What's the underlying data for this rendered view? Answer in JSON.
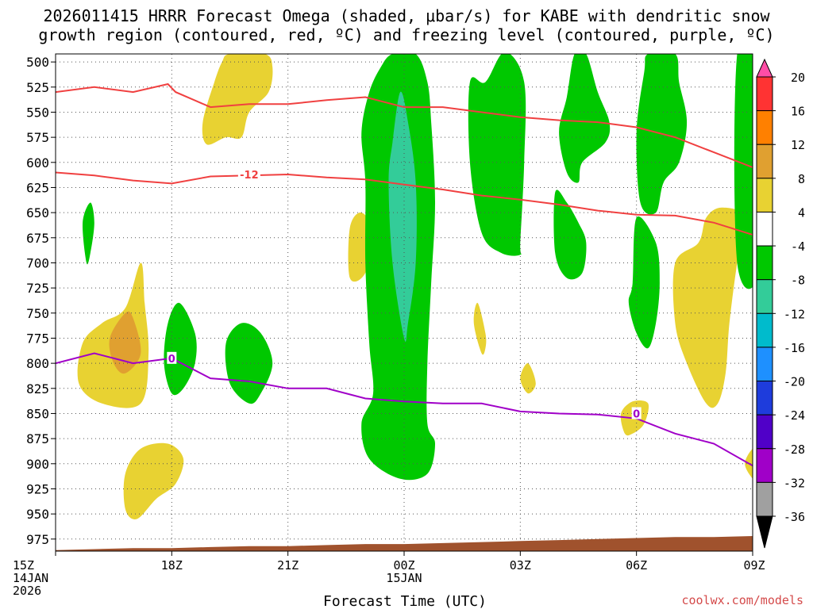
{
  "chart_data": {
    "type": "heatmap",
    "title": [
      "2026011415 HRRR Forecast Omega (shaded, μbar/s) for KABE with dendritic snow",
      "growth region (contoured, red, ºC) and freezing level (contoured, purple, ºC)"
    ],
    "xlabel": "Forecast Time (UTC)",
    "credit": "coolwx.com/models",
    "x_range_hours": [
      15,
      33
    ],
    "x_ticks": [
      {
        "hour": 15,
        "lines": [
          "15Z",
          "14JAN",
          "2026"
        ]
      },
      {
        "hour": 18,
        "lines": [
          "18Z"
        ]
      },
      {
        "hour": 21,
        "lines": [
          "21Z"
        ]
      },
      {
        "hour": 24,
        "lines": [
          "00Z",
          "15JAN"
        ]
      },
      {
        "hour": 27,
        "lines": [
          "03Z"
        ]
      },
      {
        "hour": 30,
        "lines": [
          "06Z"
        ]
      },
      {
        "hour": 33,
        "lines": [
          "09Z"
        ]
      }
    ],
    "y_range_hpa": [
      987,
      492
    ],
    "y_ticks": [
      500,
      525,
      550,
      575,
      600,
      625,
      650,
      675,
      700,
      725,
      750,
      775,
      800,
      825,
      850,
      875,
      900,
      925,
      950,
      975
    ],
    "colorbar": {
      "labels": [
        "20",
        "16",
        "12",
        "8",
        "4",
        "-4",
        "-8",
        "-12",
        "-16",
        "-20",
        "-24",
        "-28",
        "-32",
        "-36"
      ],
      "colors": [
        "#ff4da6",
        "#ff3333",
        "#ff8000",
        "#e0a030",
        "#e8d232",
        "#ffffff",
        "#00c800",
        "#33cc99",
        "#00bbcc",
        "#1e90ff",
        "#1e3cdc",
        "#5000c8",
        "#a000c8",
        "#a0a0a0",
        "#000000"
      ]
    },
    "omega_regions": [
      {
        "level": "4",
        "color": "#e8d232",
        "points": [
          [
            16.2,
            840
          ],
          [
            15.6,
            820
          ],
          [
            15.7,
            780
          ],
          [
            16.2,
            760
          ],
          [
            16.8,
            745
          ],
          [
            17.2,
            700
          ],
          [
            17.3,
            740
          ],
          [
            17.4,
            790
          ],
          [
            17.2,
            840
          ]
        ]
      },
      {
        "level": "8",
        "color": "#e0a030",
        "points": [
          [
            16.5,
            800
          ],
          [
            16.4,
            775
          ],
          [
            16.8,
            750
          ],
          [
            17.0,
            755
          ],
          [
            17.2,
            790
          ],
          [
            16.8,
            810
          ]
        ]
      },
      {
        "level": "4",
        "color": "#e8d232",
        "points": [
          [
            16.8,
            945
          ],
          [
            16.8,
            910
          ],
          [
            17.2,
            885
          ],
          [
            17.9,
            880
          ],
          [
            18.3,
            895
          ],
          [
            18.1,
            920
          ],
          [
            17.6,
            935
          ],
          [
            17.1,
            955
          ]
        ]
      },
      {
        "level": "4",
        "color": "#e8d232",
        "points": [
          [
            18.9,
            582
          ],
          [
            18.8,
            560
          ],
          [
            19.1,
            520
          ],
          [
            19.3,
            500
          ],
          [
            19.5,
            492
          ],
          [
            20.4,
            492
          ],
          [
            20.6,
            505
          ],
          [
            20.5,
            530
          ],
          [
            20.0,
            550
          ],
          [
            19.8,
            575
          ],
          [
            19.4,
            575
          ]
        ]
      },
      {
        "level": "4",
        "color": "#e8d232",
        "points": [
          [
            22.6,
            715
          ],
          [
            22.6,
            665
          ],
          [
            22.9,
            650
          ],
          [
            23.2,
            670
          ],
          [
            23.0,
            710
          ]
        ]
      },
      {
        "level": "4",
        "color": "#e8d232",
        "points": [
          [
            26.0,
            790
          ],
          [
            25.8,
            760
          ],
          [
            25.9,
            740
          ],
          [
            26.1,
            770
          ],
          [
            26.1,
            785
          ]
        ]
      },
      {
        "level": "4",
        "color": "#e8d232",
        "points": [
          [
            27.2,
            830
          ],
          [
            27.0,
            815
          ],
          [
            27.2,
            800
          ],
          [
            27.4,
            820
          ]
        ]
      },
      {
        "level": "4",
        "color": "#e8d232",
        "points": [
          [
            29.7,
            870
          ],
          [
            29.6,
            850
          ],
          [
            29.9,
            838
          ],
          [
            30.3,
            840
          ],
          [
            30.2,
            860
          ],
          [
            29.9,
            870
          ]
        ]
      },
      {
        "level": "4",
        "color": "#e8d232",
        "points": [
          [
            31.8,
            840
          ],
          [
            31.3,
            800
          ],
          [
            31.0,
            760
          ],
          [
            31.0,
            700
          ],
          [
            31.6,
            680
          ],
          [
            31.8,
            655
          ],
          [
            32.2,
            645
          ],
          [
            32.8,
            655
          ],
          [
            32.6,
            700
          ],
          [
            32.4,
            760
          ],
          [
            32.3,
            810
          ],
          [
            32.1,
            840
          ]
        ]
      },
      {
        "level": "4",
        "color": "#e8d232",
        "points": [
          [
            33.0,
            915
          ],
          [
            32.8,
            900
          ],
          [
            33.0,
            885
          ],
          [
            33.2,
            885
          ],
          [
            33.2,
            920
          ]
        ]
      },
      {
        "level": "-4",
        "color": "#00c800",
        "points": [
          [
            23.9,
            915
          ],
          [
            23.1,
            895
          ],
          [
            22.9,
            860
          ],
          [
            23.2,
            830
          ],
          [
            23.1,
            780
          ],
          [
            23.0,
            700
          ],
          [
            23.0,
            620
          ],
          [
            22.9,
            570
          ],
          [
            23.1,
            530
          ],
          [
            23.4,
            505
          ],
          [
            23.7,
            492
          ],
          [
            24.3,
            492
          ],
          [
            24.6,
            520
          ],
          [
            24.7,
            560
          ],
          [
            24.8,
            640
          ],
          [
            24.7,
            720
          ],
          [
            24.6,
            800
          ],
          [
            24.6,
            860
          ],
          [
            24.8,
            880
          ],
          [
            24.6,
            910
          ]
        ]
      },
      {
        "level": "-8",
        "color": "#33cc99",
        "points": [
          [
            24.0,
            775
          ],
          [
            23.7,
            700
          ],
          [
            23.6,
            620
          ],
          [
            23.7,
            580
          ],
          [
            23.9,
            530
          ],
          [
            24.1,
            560
          ],
          [
            24.3,
            620
          ],
          [
            24.3,
            700
          ],
          [
            24.1,
            760
          ]
        ]
      },
      {
        "level": "-4",
        "color": "#00c800",
        "points": [
          [
            27.0,
            692
          ],
          [
            26.5,
            690
          ],
          [
            26.0,
            670
          ],
          [
            25.7,
            600
          ],
          [
            25.7,
            520
          ],
          [
            26.1,
            520
          ],
          [
            26.6,
            490
          ],
          [
            27.1,
            520
          ],
          [
            27.1,
            600
          ],
          [
            27.0,
            680
          ]
        ]
      },
      {
        "level": "-4",
        "color": "#00c800",
        "points": [
          [
            28.2,
            535
          ],
          [
            28.4,
            492
          ],
          [
            28.7,
            492
          ],
          [
            29.0,
            530
          ],
          [
            29.3,
            560
          ],
          [
            29.2,
            580
          ],
          [
            28.6,
            600
          ],
          [
            28.5,
            620
          ],
          [
            28.2,
            610
          ],
          [
            28.0,
            570
          ]
        ]
      },
      {
        "level": "-4",
        "color": "#00c800",
        "points": [
          [
            27.9,
            630
          ],
          [
            28.2,
            640
          ],
          [
            28.5,
            660
          ],
          [
            28.7,
            680
          ],
          [
            28.6,
            710
          ],
          [
            28.2,
            715
          ],
          [
            27.9,
            690
          ]
        ]
      },
      {
        "level": "-4",
        "color": "#00c800",
        "points": [
          [
            30.2,
            510
          ],
          [
            30.3,
            492
          ],
          [
            31.0,
            492
          ],
          [
            31.1,
            520
          ],
          [
            31.3,
            560
          ],
          [
            31.1,
            600
          ],
          [
            30.7,
            620
          ],
          [
            30.5,
            650
          ],
          [
            30.1,
            640
          ],
          [
            30.0,
            570
          ]
        ]
      },
      {
        "level": "-4",
        "color": "#00c800",
        "points": [
          [
            29.9,
            720
          ],
          [
            30.0,
            655
          ],
          [
            30.5,
            680
          ],
          [
            30.6,
            720
          ],
          [
            30.5,
            760
          ],
          [
            30.3,
            785
          ],
          [
            30.0,
            770
          ],
          [
            29.8,
            740
          ]
        ]
      },
      {
        "level": "-4",
        "color": "#00c800",
        "points": [
          [
            32.6,
            700
          ],
          [
            32.6,
            492
          ],
          [
            33.2,
            492
          ],
          [
            33.2,
            700
          ]
        ]
      },
      {
        "level": "-4",
        "color": "#00c800",
        "points": [
          [
            15.8,
            700
          ],
          [
            15.7,
            660
          ],
          [
            15.9,
            640
          ],
          [
            16.0,
            660
          ],
          [
            15.9,
            690
          ]
        ]
      },
      {
        "level": "-4",
        "color": "#00c800",
        "points": [
          [
            18.0,
            830
          ],
          [
            17.8,
            800
          ],
          [
            17.9,
            760
          ],
          [
            18.2,
            740
          ],
          [
            18.6,
            770
          ],
          [
            18.6,
            800
          ],
          [
            18.3,
            825
          ]
        ]
      },
      {
        "level": "-4",
        "color": "#00c800",
        "points": [
          [
            20.0,
            840
          ],
          [
            19.5,
            820
          ],
          [
            19.4,
            780
          ],
          [
            19.8,
            760
          ],
          [
            20.3,
            770
          ],
          [
            20.6,
            800
          ],
          [
            20.3,
            830
          ]
        ]
      }
    ],
    "dgz_lines": [
      {
        "label": "",
        "color": "#f04040",
        "points": [
          [
            15,
            530
          ],
          [
            16,
            525
          ],
          [
            17,
            530
          ],
          [
            17.9,
            522
          ],
          [
            18.1,
            530
          ],
          [
            19,
            545
          ],
          [
            20,
            542
          ],
          [
            21,
            542
          ],
          [
            22,
            538
          ],
          [
            23,
            535
          ],
          [
            24,
            545
          ],
          [
            25,
            545
          ],
          [
            26,
            550
          ],
          [
            27,
            555
          ],
          [
            28,
            558
          ],
          [
            29,
            560
          ],
          [
            30,
            565
          ],
          [
            31,
            575
          ],
          [
            32,
            590
          ],
          [
            33,
            605
          ]
        ]
      },
      {
        "label": "-12",
        "color": "#f04040",
        "label_at": [
          20.0,
          612
        ],
        "points": [
          [
            15,
            610
          ],
          [
            16,
            613
          ],
          [
            17,
            618
          ],
          [
            18,
            621
          ],
          [
            19,
            614
          ],
          [
            20,
            613
          ],
          [
            21,
            612
          ],
          [
            22,
            615
          ],
          [
            23,
            617
          ],
          [
            24,
            622
          ],
          [
            25,
            627
          ],
          [
            26,
            633
          ],
          [
            27,
            637
          ],
          [
            28,
            642
          ],
          [
            29,
            648
          ],
          [
            30,
            652
          ],
          [
            31,
            653
          ],
          [
            32,
            660
          ],
          [
            33,
            672
          ]
        ]
      }
    ],
    "freezing_level": {
      "label": "0",
      "color": "#a000c8",
      "label_at_left": [
        18.0,
        795
      ],
      "label_at_right": [
        30.0,
        850
      ],
      "points": [
        [
          15,
          800
        ],
        [
          16,
          790
        ],
        [
          17,
          800
        ],
        [
          18,
          795
        ],
        [
          19,
          815
        ],
        [
          20,
          818
        ],
        [
          21,
          825
        ],
        [
          22,
          825
        ],
        [
          23,
          835
        ],
        [
          24,
          838
        ],
        [
          25,
          840
        ],
        [
          26,
          840
        ],
        [
          27,
          848
        ],
        [
          28,
          850
        ],
        [
          29,
          851
        ],
        [
          30,
          855
        ],
        [
          31,
          870
        ],
        [
          32,
          880
        ],
        [
          33,
          902
        ]
      ]
    },
    "terrain": {
      "color": "#a0522d",
      "points": [
        [
          15,
          986
        ],
        [
          16,
          985
        ],
        [
          17,
          984
        ],
        [
          18,
          984
        ],
        [
          19,
          983
        ],
        [
          20,
          982
        ],
        [
          21,
          982
        ],
        [
          22,
          981
        ],
        [
          23,
          980
        ],
        [
          24,
          980
        ],
        [
          25,
          979
        ],
        [
          26,
          978
        ],
        [
          27,
          977
        ],
        [
          28,
          976
        ],
        [
          29,
          975
        ],
        [
          30,
          974
        ],
        [
          31,
          973
        ],
        [
          32,
          973
        ],
        [
          33,
          972
        ]
      ]
    }
  }
}
